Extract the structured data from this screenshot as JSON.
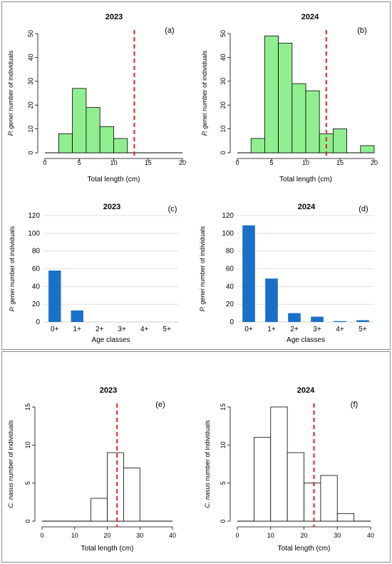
{
  "chart_data": [
    {
      "panel": "(a)",
      "type": "bar",
      "style": "histogram",
      "title": "2023",
      "xlabel": "Total length (cm)",
      "ylabel_italic": "P. genei",
      "ylabel_rest": " number of individuals",
      "xlim": [
        0,
        20
      ],
      "ylim": [
        0,
        50
      ],
      "xticks": [
        0,
        5,
        10,
        15,
        20
      ],
      "yticks": [
        0,
        10,
        20,
        30,
        40,
        50
      ],
      "bins": [
        [
          2,
          4,
          8
        ],
        [
          4,
          6,
          27
        ],
        [
          6,
          8,
          19
        ],
        [
          8,
          10,
          11
        ],
        [
          10,
          12,
          6
        ]
      ],
      "reference_line_x": 13,
      "fill": "#90ee90",
      "line_color": "#e32222"
    },
    {
      "panel": "(b)",
      "type": "bar",
      "style": "histogram",
      "title": "2024",
      "xlabel": "Total length (cm)",
      "ylabel_italic": "P. genei",
      "ylabel_rest": " number of individuals",
      "xlim": [
        0,
        20
      ],
      "ylim": [
        0,
        50
      ],
      "xticks": [
        0,
        5,
        10,
        15,
        20
      ],
      "yticks": [
        0,
        10,
        20,
        30,
        40,
        50
      ],
      "bins": [
        [
          2,
          4,
          6
        ],
        [
          4,
          6,
          49
        ],
        [
          6,
          8,
          46
        ],
        [
          8,
          10,
          29
        ],
        [
          10,
          12,
          26
        ],
        [
          12,
          14,
          8
        ],
        [
          14,
          16,
          10
        ],
        [
          16,
          18,
          0
        ],
        [
          18,
          20,
          3
        ]
      ],
      "reference_line_x": 13,
      "fill": "#90ee90",
      "line_color": "#e32222"
    },
    {
      "panel": "(c)",
      "type": "bar",
      "title": "2023",
      "xlabel": "Age classes",
      "ylabel_italic": "P. genei",
      "ylabel_rest": " number of individuals",
      "categories": [
        "0+",
        "1+",
        "2+",
        "3+",
        "4+",
        "5+"
      ],
      "values": [
        58,
        13,
        0,
        0,
        0,
        0
      ],
      "ylim": [
        0,
        120
      ],
      "yticks": [
        0,
        20,
        40,
        60,
        80,
        100,
        120
      ],
      "grid": true,
      "fill": "#1a6fc9"
    },
    {
      "panel": "(d)",
      "type": "bar",
      "title": "2024",
      "xlabel": "Age classes",
      "ylabel_italic": "P. genei",
      "ylabel_rest": " number of individuals",
      "categories": [
        "0+",
        "1+",
        "2+",
        "3+",
        "4+",
        "5+"
      ],
      "values": [
        109,
        49,
        10,
        6,
        1,
        2
      ],
      "ylim": [
        0,
        120
      ],
      "yticks": [
        0,
        20,
        40,
        60,
        80,
        100,
        120
      ],
      "grid": true,
      "fill": "#1a6fc9"
    },
    {
      "panel": "(e)",
      "type": "bar",
      "style": "histogram",
      "title": "2023",
      "xlabel": "Total length (cm)",
      "ylabel_italic": "C. nasus",
      "ylabel_rest": " number of individuals",
      "xlim": [
        0,
        40
      ],
      "ylim": [
        0,
        15
      ],
      "xticks": [
        0,
        10,
        20,
        30,
        40
      ],
      "yticks": [
        0,
        5,
        10,
        15
      ],
      "bins": [
        [
          15,
          20,
          3
        ],
        [
          20,
          25,
          9
        ],
        [
          25,
          30,
          7
        ]
      ],
      "reference_line_x": 23,
      "fill": "#ffffff",
      "line_color": "#e32222"
    },
    {
      "panel": "(f)",
      "type": "bar",
      "style": "histogram",
      "title": "2024",
      "xlabel": "Total length (cm)",
      "ylabel_italic": "C. nasus",
      "ylabel_rest": " number of individuals",
      "xlim": [
        0,
        40
      ],
      "ylim": [
        0,
        15
      ],
      "xticks": [
        0,
        10,
        20,
        30,
        40
      ],
      "yticks": [
        0,
        5,
        10,
        15
      ],
      "bins": [
        [
          5,
          10,
          11
        ],
        [
          10,
          15,
          15
        ],
        [
          15,
          20,
          9
        ],
        [
          20,
          25,
          5
        ],
        [
          25,
          30,
          6
        ],
        [
          30,
          35,
          1
        ]
      ],
      "reference_line_x": 23,
      "fill": "#ffffff",
      "line_color": "#e32222"
    }
  ]
}
